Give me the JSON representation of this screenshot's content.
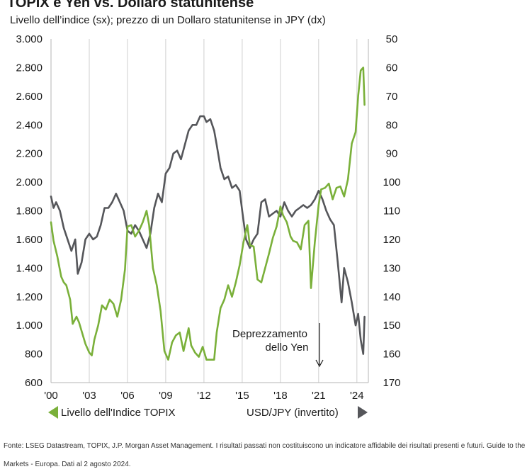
{
  "title": "TOPIX e Yen vs. Dollaro statunitense",
  "subtitle": "Livello dell’indice (sx); prezzo di un Dollaro statunitense in JPY (dx)",
  "footnote": "Fonte: LSEG Datastream, TOPIX, J.P. Morgan Asset Management. I risultati passati non costituiscono un indicatore affidabile dei risultati presenti e futuri. Guide to the Markets - Europa. Dati al 2 agosto 2024.",
  "colors": {
    "topix": "#7ab03a",
    "usdjpy": "#55565a",
    "grid": "#cfcfcf"
  },
  "chart_data": {
    "type": "line",
    "y_left": {
      "ylim": [
        600,
        3000
      ],
      "ticks": [
        600,
        800,
        1000,
        1200,
        1400,
        1600,
        1800,
        2000,
        2200,
        2400,
        2600,
        2800,
        3000
      ],
      "tick_labels": [
        "600",
        "800",
        "1.000",
        "1.200",
        "1.400",
        "1.600",
        "1.800",
        "2.000",
        "2.200",
        "2.400",
        "2.600",
        "2.800",
        "3.000"
      ]
    },
    "y_right": {
      "ylim": [
        170,
        50
      ],
      "inverted": true,
      "ticks": [
        50,
        60,
        70,
        80,
        90,
        100,
        110,
        120,
        130,
        140,
        150,
        160,
        170
      ],
      "tick_labels": [
        "50",
        "60",
        "70",
        "80",
        "90",
        "100",
        "110",
        "120",
        "130",
        "140",
        "150",
        "160",
        "170"
      ]
    },
    "x_axis": {
      "xlim": [
        2000,
        2024.9
      ],
      "ticks": [
        2000,
        2003,
        2006,
        2009,
        2012,
        2015,
        2018,
        2021,
        2024
      ],
      "tick_labels": [
        "'00",
        "'03",
        "'06",
        "'09",
        "'12",
        "'15",
        "'18",
        "'21",
        "'24"
      ]
    },
    "grid": "vertical",
    "annotation": {
      "lines": [
        "Deprezzamento",
        "dello Yen"
      ],
      "x": 2021
    },
    "legend": {
      "left": "Livello dell'Indice TOPIX",
      "right": "USD/JPY (invertito)"
    },
    "series": [
      {
        "name": "Livello dell'Indice TOPIX",
        "axis": "left",
        "x": [
          2000.0,
          2000.2,
          2000.5,
          2000.8,
          2001.0,
          2001.2,
          2001.5,
          2001.7,
          2002.0,
          2002.2,
          2002.4,
          2002.7,
          2003.0,
          2003.2,
          2003.4,
          2003.7,
          2004.0,
          2004.3,
          2004.6,
          2004.9,
          2005.2,
          2005.5,
          2005.8,
          2006.0,
          2006.3,
          2006.6,
          2006.9,
          2007.2,
          2007.5,
          2007.7,
          2008.0,
          2008.3,
          2008.6,
          2008.9,
          2009.2,
          2009.5,
          2009.8,
          2010.1,
          2010.4,
          2010.8,
          2011.0,
          2011.3,
          2011.6,
          2011.9,
          2012.2,
          2012.5,
          2012.8,
          2013.0,
          2013.3,
          2013.6,
          2013.9,
          2014.2,
          2014.5,
          2014.8,
          2015.1,
          2015.4,
          2015.6,
          2015.9,
          2016.2,
          2016.5,
          2016.8,
          2017.1,
          2017.4,
          2017.7,
          2018.0,
          2018.2,
          2018.5,
          2018.8,
          2019.0,
          2019.3,
          2019.6,
          2019.9,
          2020.2,
          2020.4,
          2020.7,
          2021.0,
          2021.2,
          2021.5,
          2021.8,
          2022.1,
          2022.4,
          2022.7,
          2023.0,
          2023.3,
          2023.6,
          2023.9,
          2024.1,
          2024.3,
          2024.5,
          2024.6
        ],
        "values": [
          1720,
          1590,
          1480,
          1340,
          1300,
          1280,
          1180,
          1010,
          1060,
          1020,
          960,
          870,
          810,
          790,
          900,
          1000,
          1140,
          1110,
          1180,
          1150,
          1060,
          1180,
          1390,
          1690,
          1700,
          1620,
          1660,
          1720,
          1800,
          1700,
          1400,
          1280,
          1100,
          820,
          760,
          880,
          930,
          950,
          820,
          980,
          860,
          810,
          780,
          850,
          760,
          760,
          760,
          950,
          1120,
          1180,
          1280,
          1200,
          1300,
          1420,
          1580,
          1700,
          1560,
          1550,
          1320,
          1300,
          1400,
          1500,
          1610,
          1690,
          1830,
          1770,
          1720,
          1620,
          1590,
          1580,
          1530,
          1700,
          1730,
          1260,
          1580,
          1840,
          1950,
          1960,
          1990,
          1880,
          1960,
          1970,
          1900,
          2020,
          2270,
          2350,
          2600,
          2780,
          2800,
          2540
        ]
      },
      {
        "name": "USD/JPY (invertito)",
        "axis": "right",
        "x": [
          2000.0,
          2000.2,
          2000.4,
          2000.7,
          2001.0,
          2001.3,
          2001.6,
          2001.9,
          2002.1,
          2002.4,
          2002.7,
          2003.0,
          2003.3,
          2003.6,
          2003.9,
          2004.2,
          2004.5,
          2004.8,
          2005.1,
          2005.4,
          2005.7,
          2006.0,
          2006.3,
          2006.6,
          2006.9,
          2007.2,
          2007.5,
          2007.8,
          2008.1,
          2008.4,
          2008.7,
          2009.0,
          2009.3,
          2009.6,
          2009.9,
          2010.2,
          2010.5,
          2010.8,
          2011.1,
          2011.4,
          2011.7,
          2012.0,
          2012.2,
          2012.5,
          2012.8,
          2013.0,
          2013.3,
          2013.6,
          2013.9,
          2014.2,
          2014.5,
          2014.8,
          2015.0,
          2015.3,
          2015.6,
          2015.9,
          2016.2,
          2016.5,
          2016.8,
          2017.1,
          2017.4,
          2017.7,
          2018.0,
          2018.3,
          2018.6,
          2018.9,
          2019.2,
          2019.5,
          2019.8,
          2020.1,
          2020.4,
          2020.7,
          2021.0,
          2021.3,
          2021.6,
          2021.9,
          2022.2,
          2022.5,
          2022.8,
          2023.0,
          2023.3,
          2023.6,
          2023.9,
          2024.1,
          2024.3,
          2024.5,
          2024.6
        ],
        "values": [
          105,
          109,
          107,
          110,
          116,
          120,
          124,
          120,
          132,
          128,
          120,
          118,
          120,
          119,
          115,
          109,
          109,
          107,
          104,
          107,
          110,
          117,
          118,
          115,
          117,
          120,
          123,
          118,
          109,
          104,
          107,
          97,
          95,
          90,
          89,
          92,
          87,
          82,
          80,
          80,
          77,
          77,
          79,
          78,
          82,
          87,
          95,
          99,
          98,
          102,
          101,
          103,
          110,
          120,
          123,
          120,
          118,
          107,
          106,
          112,
          111,
          110,
          112,
          107,
          110,
          112,
          110,
          109,
          108,
          109,
          108,
          106,
          103,
          106,
          110,
          113,
          115,
          128,
          142,
          130,
          135,
          142,
          150,
          146,
          155,
          160,
          147
        ]
      }
    ]
  }
}
